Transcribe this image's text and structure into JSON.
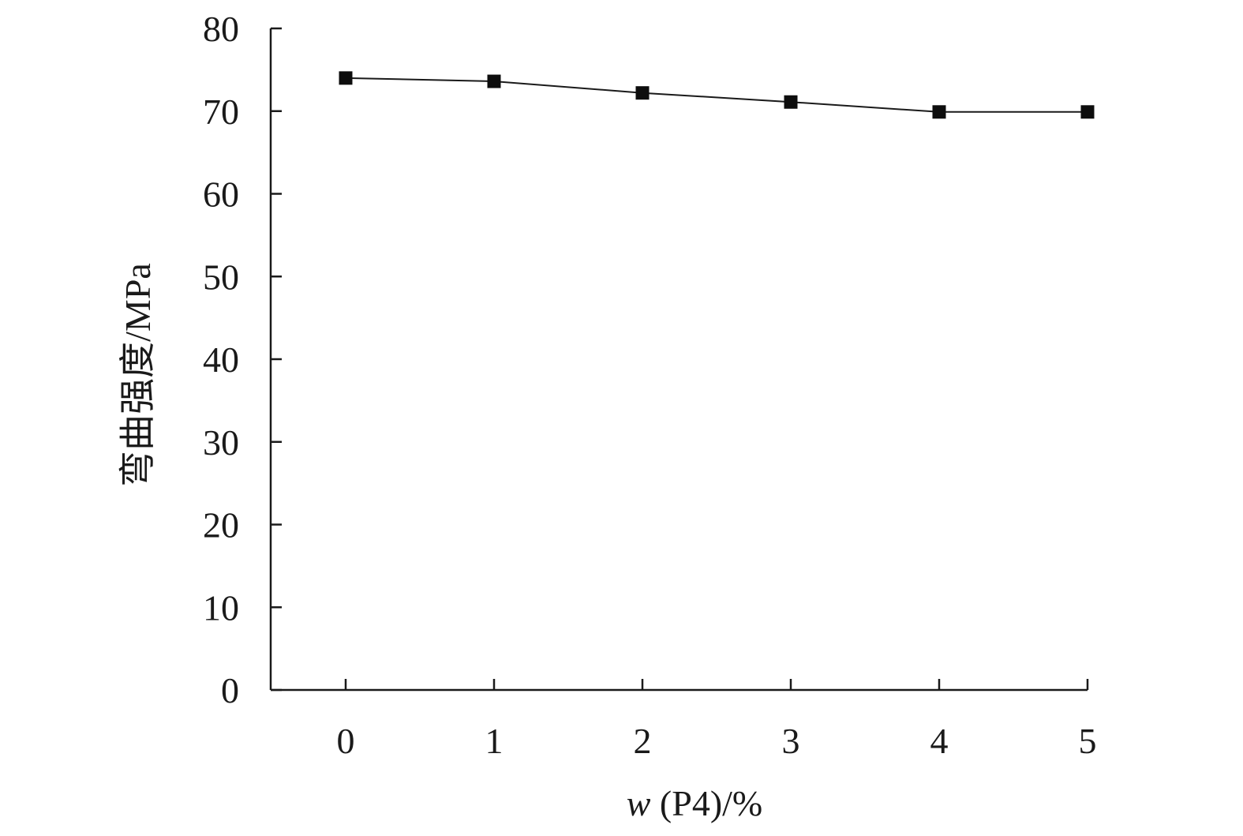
{
  "chart_data": {
    "type": "line",
    "title": "",
    "xlabel": {
      "var": "w",
      "rest": " (P4)/%"
    },
    "ylabel": "弯曲强度/MPa",
    "x": [
      0,
      1,
      2,
      3,
      4,
      5
    ],
    "x_ticks": [
      "0",
      "1",
      "2",
      "3",
      "4",
      "5"
    ],
    "y_ticks": [
      "0",
      "10",
      "20",
      "30",
      "40",
      "50",
      "60",
      "70",
      "80"
    ],
    "xlim": [
      -0.5,
      5
    ],
    "ylim": [
      0,
      80
    ],
    "grid": false,
    "legend": "none",
    "series": [
      {
        "values": [
          74,
          73.6,
          72.2,
          71.1,
          69.9,
          69.9
        ],
        "marker": "square",
        "color": "#0d0d0d"
      }
    ]
  }
}
